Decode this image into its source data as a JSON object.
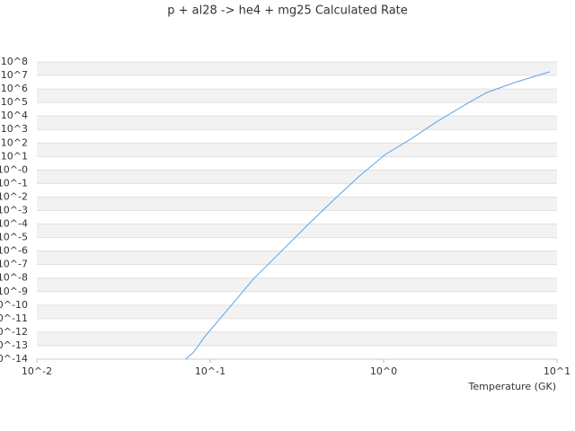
{
  "chart_data": {
    "type": "line",
    "title": "p + al28 -> he4 + mg25 Calculated Rate",
    "x_label": "Temperature (GK)",
    "log_x": true,
    "log_y": true,
    "grid": true,
    "xlim": [
      0.01,
      10
    ],
    "xticks": [
      {
        "value": 0.01,
        "label": "10^-2"
      },
      {
        "value": 0.1,
        "label": "10^-1"
      },
      {
        "value": 1,
        "label": "10^0"
      },
      {
        "value": 10,
        "label": "10^1"
      }
    ],
    "ylim": [
      1e-14,
      100000000
    ],
    "yticks": [
      {
        "value": 100000000,
        "label": "10^8"
      },
      {
        "value": 10000000,
        "label": "10^7"
      },
      {
        "value": 1000000,
        "label": "10^6"
      },
      {
        "value": 100000,
        "label": "10^5"
      },
      {
        "value": 10000,
        "label": "10^4"
      },
      {
        "value": 1000,
        "label": "10^3"
      },
      {
        "value": 100,
        "label": "10^2"
      },
      {
        "value": 10,
        "label": "10^1"
      },
      {
        "value": 1,
        "label": "10^-0"
      },
      {
        "value": 0.1,
        "label": "10^-1"
      },
      {
        "value": 0.01,
        "label": "10^-2"
      },
      {
        "value": 0.001,
        "label": "10^-3"
      },
      {
        "value": 0.0001,
        "label": "10^-4"
      },
      {
        "value": 1e-05,
        "label": "10^-5"
      },
      {
        "value": 1e-06,
        "label": "10^-6"
      },
      {
        "value": 1e-07,
        "label": "10^-7"
      },
      {
        "value": 1e-08,
        "label": "10^-8"
      },
      {
        "value": 1e-09,
        "label": "10^-9"
      },
      {
        "value": 1e-10,
        "label": "10^-10"
      },
      {
        "value": 1e-11,
        "label": "10^-11"
      },
      {
        "value": 1e-12,
        "label": "10^-12"
      },
      {
        "value": 1e-13,
        "label": "10^-13"
      },
      {
        "value": 1e-14,
        "label": "10^-14"
      }
    ],
    "series": [
      {
        "color": "#5aa3e8",
        "x": [
          0.072,
          0.0797,
          0.093,
          0.1285,
          0.177,
          0.263,
          0.367,
          0.513,
          0.716,
          1.02,
          1.43,
          1.97,
          3.1,
          3.94,
          5.71,
          9.09
        ],
        "values": [
          1e-14,
          2.95e-14,
          4.6e-13,
          6.2e-11,
          8.3e-09,
          1.3e-06,
          9.3e-05,
          0.0058,
          0.31,
          14,
          190,
          3000,
          100000,
          550000,
          3000000,
          19000000
        ]
      }
    ]
  }
}
